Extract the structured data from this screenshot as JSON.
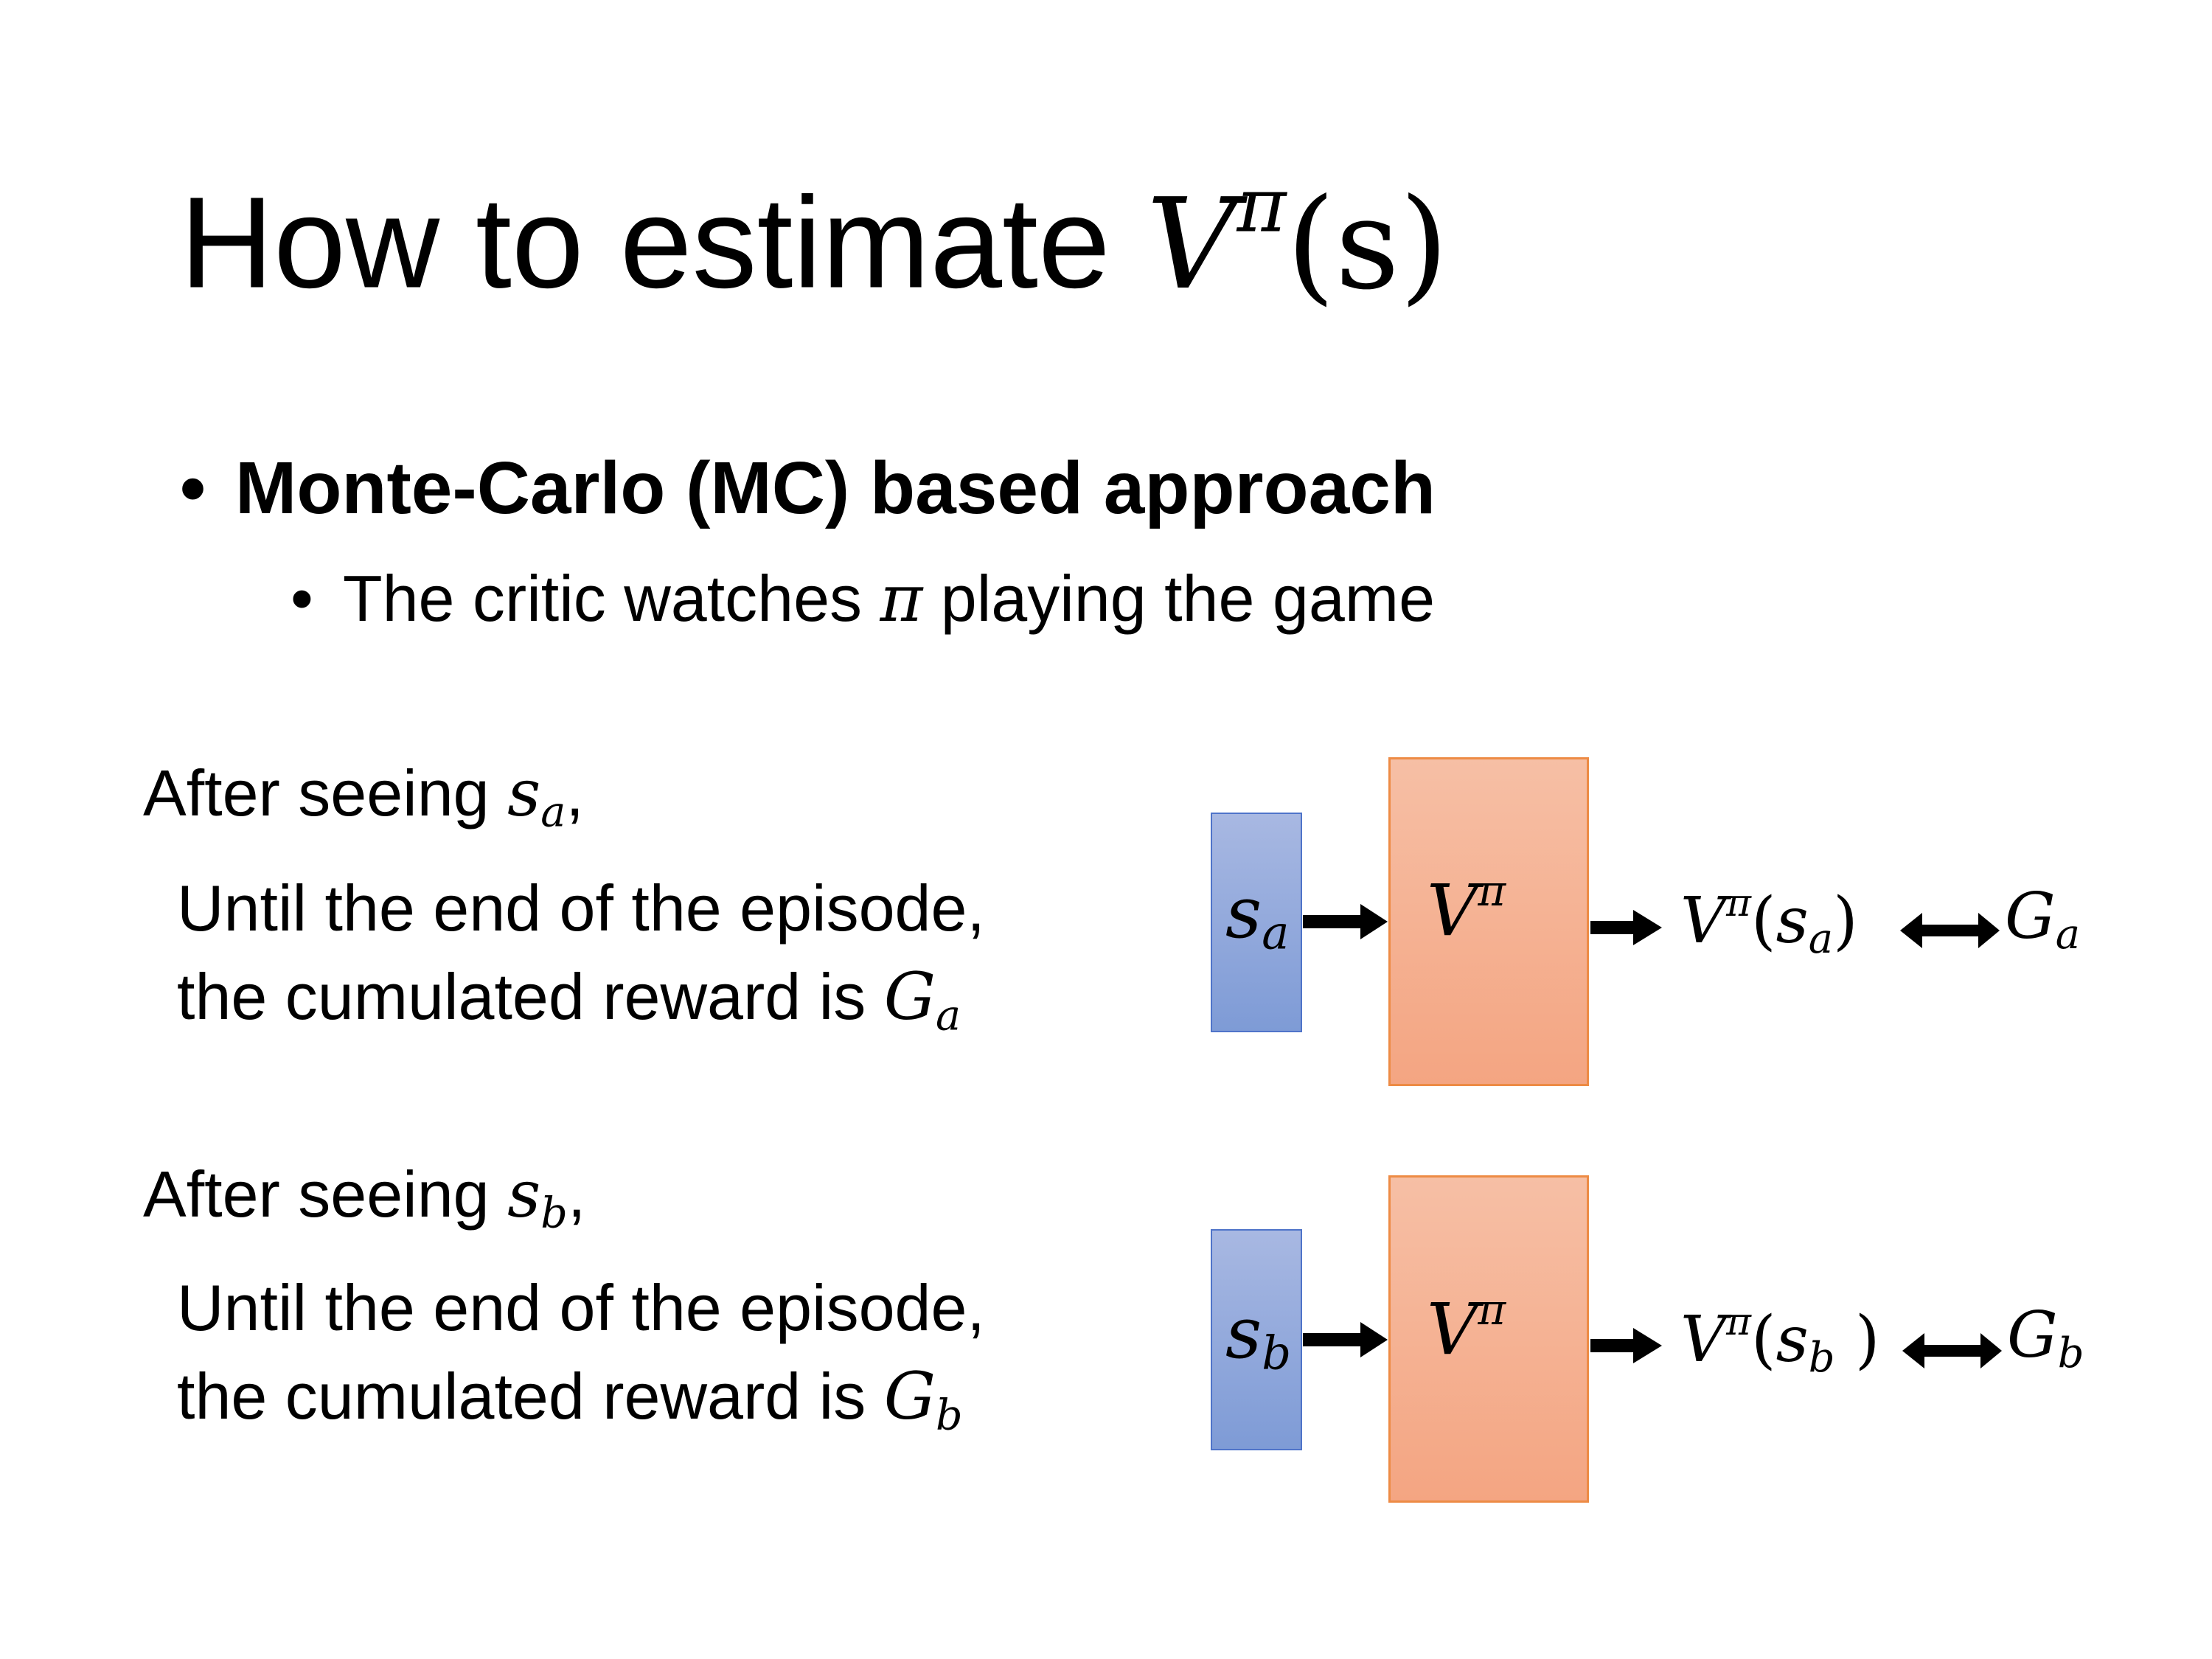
{
  "title": {
    "text": "How to estimate",
    "math": "V",
    "sup": "π",
    "arg": "(s)"
  },
  "bullets": [
    {
      "text": "Monte-Carlo (MC) based approach"
    },
    {
      "text_before": "The critic watches",
      "math": "π",
      "text_after": "playing the game"
    }
  ],
  "cases": [
    {
      "after": "After seeing",
      "state": "s",
      "sub": "a",
      "line1": "Until the end of the episode,",
      "line2": "the cumulated reward is",
      "G": "G",
      "Gsub": "a",
      "diagram": {
        "input": "s",
        "input_sub": "a",
        "network": "V",
        "network_sup": "π",
        "output": "V",
        "output_sup": "π",
        "output_arg": "s",
        "output_sub": "a",
        "target": "G",
        "target_sub": "a"
      }
    },
    {
      "after": "After seeing",
      "state": "s",
      "sub": "b",
      "line1": "Until the end of the episode,",
      "line2": "the cumulated reward is",
      "G": "G",
      "Gsub": "b",
      "diagram": {
        "input": "s",
        "input_sub": "b",
        "network": "V",
        "network_sup": "π",
        "output": "V",
        "output_sup": "π",
        "output_arg": "s",
        "output_sub": "b",
        "target": "G",
        "target_sub": "b"
      }
    }
  ],
  "colors": {
    "input_box": "#8fa6dc",
    "network_box": "#f4ab8a"
  }
}
